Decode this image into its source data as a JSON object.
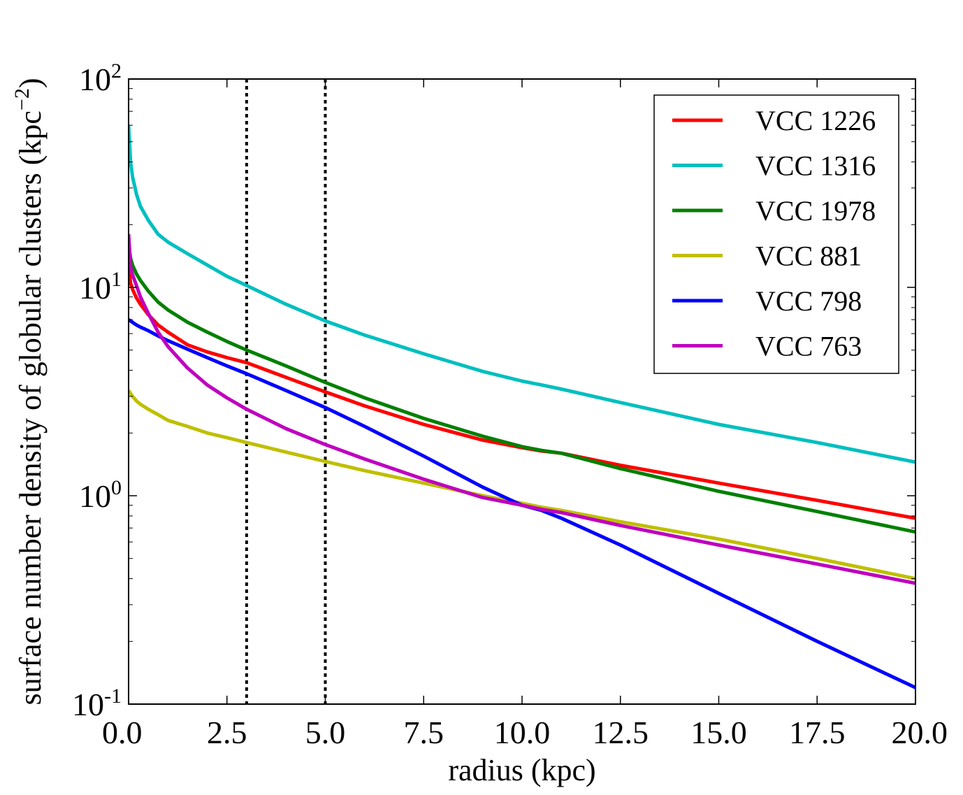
{
  "chart_data": {
    "type": "line",
    "title": "",
    "xlabel": "radius (kpc)",
    "ylabel": "surface number density of globular clusters (kpc",
    "ylabel_exponent": "−2",
    "ylabel_close": ")",
    "xlim": [
      0.0,
      20.0
    ],
    "ylim": [
      0.1,
      100
    ],
    "yscale": "log",
    "grid": false,
    "x_ticks": [
      0.0,
      2.5,
      5.0,
      7.5,
      10.0,
      12.5,
      15.0,
      17.5,
      20.0
    ],
    "x_tick_labels": [
      "0.0",
      "2.5",
      "5.0",
      "7.5",
      "10.0",
      "12.5",
      "15.0",
      "17.5",
      "20.0"
    ],
    "y_ticks": [
      0.1,
      1,
      10,
      100
    ],
    "y_tick_labels": [
      {
        "base": "10",
        "exp": "-1"
      },
      {
        "base": "10",
        "exp": "0"
      },
      {
        "base": "10",
        "exp": "1"
      },
      {
        "base": "10",
        "exp": "2"
      }
    ],
    "vertical_lines": [
      {
        "x": 3.0,
        "style": "dotted",
        "color": "#000000"
      },
      {
        "x": 5.0,
        "style": "dotted",
        "color": "#000000"
      }
    ],
    "legend_location": "top-right",
    "x": [
      0.0,
      0.05,
      0.1,
      0.2,
      0.3,
      0.5,
      0.75,
      1.0,
      1.5,
      2.0,
      2.5,
      3.0,
      4.0,
      5.0,
      6.0,
      7.5,
      9.0,
      10.0,
      10.5,
      11.0,
      12.5,
      15.0,
      17.5,
      20.0
    ],
    "series": [
      {
        "name": "VCC 1226",
        "color": "#ff0000",
        "values": [
          12.5,
          10.5,
          9.8,
          8.9,
          8.3,
          7.4,
          6.6,
          6.1,
          5.3,
          4.9,
          4.6,
          4.35,
          3.7,
          3.15,
          2.7,
          2.2,
          1.85,
          1.7,
          1.64,
          1.6,
          1.4,
          1.15,
          0.95,
          0.78
        ]
      },
      {
        "name": "VCC 1316",
        "color": "#00bfbf",
        "values": [
          60,
          40,
          34,
          28,
          24.5,
          21,
          18,
          16.5,
          14.5,
          12.8,
          11.3,
          10.2,
          8.3,
          6.9,
          5.9,
          4.8,
          3.95,
          3.55,
          3.4,
          3.25,
          2.8,
          2.2,
          1.8,
          1.45
        ]
      },
      {
        "name": "VCC 1978",
        "color": "#008000",
        "values": [
          16,
          13.8,
          12.8,
          11.6,
          10.8,
          9.6,
          8.5,
          7.8,
          6.8,
          6.1,
          5.5,
          5.0,
          4.2,
          3.5,
          2.95,
          2.35,
          1.93,
          1.72,
          1.65,
          1.6,
          1.35,
          1.05,
          0.84,
          0.67
        ]
      },
      {
        "name": "VCC 881",
        "color": "#bfbf00",
        "values": [
          3.2,
          3.1,
          3.0,
          2.85,
          2.75,
          2.6,
          2.45,
          2.3,
          2.15,
          2.0,
          1.9,
          1.8,
          1.62,
          1.46,
          1.32,
          1.15,
          1.0,
          0.92,
          0.88,
          0.85,
          0.75,
          0.62,
          0.5,
          0.4
        ]
      },
      {
        "name": "VCC 798",
        "color": "#0000ff",
        "values": [
          7.0,
          6.9,
          6.8,
          6.6,
          6.45,
          6.2,
          5.85,
          5.55,
          5.05,
          4.6,
          4.2,
          3.85,
          3.2,
          2.65,
          2.15,
          1.55,
          1.1,
          0.9,
          0.85,
          0.78,
          0.58,
          0.34,
          0.2,
          0.12
        ]
      },
      {
        "name": "VCC 763",
        "color": "#bf00bf",
        "values": [
          18,
          12.5,
          11.5,
          10.2,
          9.0,
          7.5,
          6.1,
          5.2,
          4.1,
          3.4,
          2.95,
          2.6,
          2.1,
          1.76,
          1.5,
          1.2,
          0.98,
          0.9,
          0.86,
          0.83,
          0.72,
          0.58,
          0.47,
          0.38
        ]
      }
    ]
  }
}
